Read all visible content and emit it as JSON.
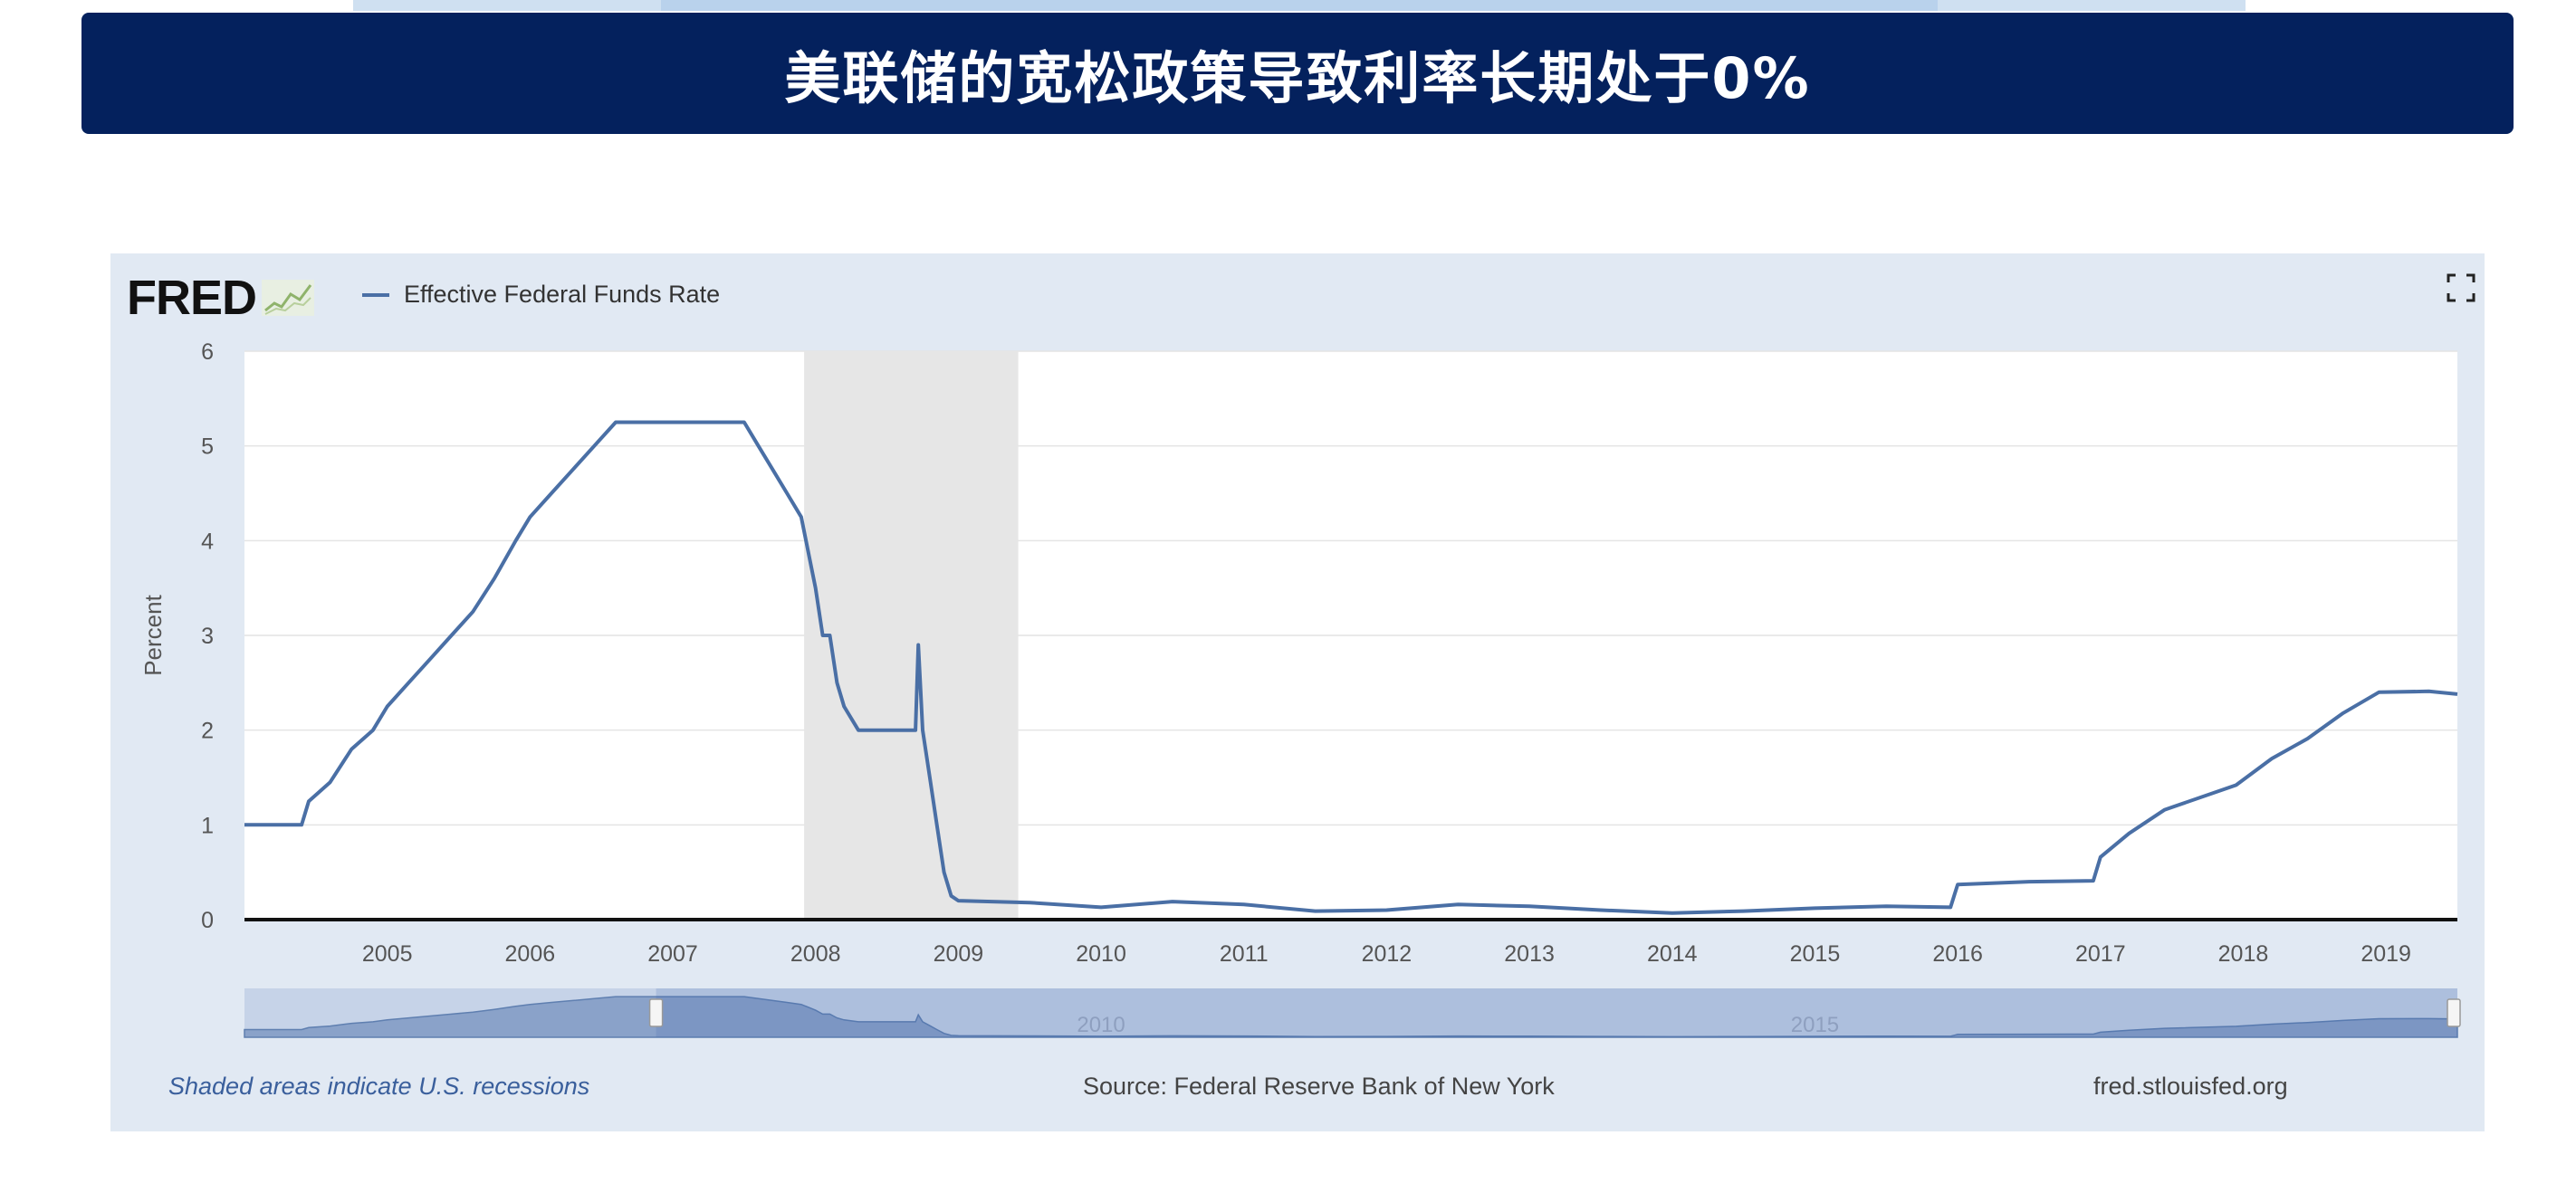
{
  "slide": {
    "title": "美联储的宽松政策导致利率长期处于0%"
  },
  "fred": {
    "logo_text": "FRED",
    "source": "Source: Federal Reserve Bank of New York",
    "site": "fred.stlouisfed.org",
    "recession_note": "Shaded areas indicate U.S. recessions",
    "navigator_labels": [
      "2010",
      "2015"
    ]
  },
  "chart_data": {
    "type": "line",
    "title": "",
    "xlabel": "",
    "ylabel": "Percent",
    "xlim": [
      2004.0,
      2019.5
    ],
    "ylim": [
      0,
      6
    ],
    "yticks": [
      0,
      1,
      2,
      3,
      4,
      5,
      6
    ],
    "xticks": [
      "2005",
      "2006",
      "2007",
      "2008",
      "2009",
      "2010",
      "2011",
      "2012",
      "2013",
      "2014",
      "2015",
      "2016",
      "2017",
      "2018",
      "2019"
    ],
    "grid": true,
    "legend": "top-left",
    "recessions": [
      [
        2007.92,
        2009.42
      ]
    ],
    "series": [
      {
        "name": "Effective Federal Funds Rate",
        "color": "#4a6fa5",
        "x": [
          2004.0,
          2004.4,
          2004.45,
          2004.6,
          2004.75,
          2004.9,
          2005.0,
          2005.15,
          2005.3,
          2005.45,
          2005.6,
          2005.75,
          2005.9,
          2006.0,
          2006.15,
          2006.3,
          2006.45,
          2006.6,
          2007.0,
          2007.5,
          2007.6,
          2007.7,
          2007.8,
          2007.9,
          2008.0,
          2008.05,
          2008.1,
          2008.15,
          2008.2,
          2008.3,
          2008.4,
          2008.5,
          2008.6,
          2008.7,
          2008.72,
          2008.75,
          2008.8,
          2008.85,
          2008.9,
          2008.95,
          2009.0,
          2009.5,
          2010.0,
          2010.5,
          2011.0,
          2011.5,
          2012.0,
          2012.5,
          2013.0,
          2013.5,
          2014.0,
          2014.5,
          2015.0,
          2015.5,
          2015.95,
          2016.0,
          2016.5,
          2016.95,
          2017.0,
          2017.2,
          2017.45,
          2017.95,
          2018.2,
          2018.45,
          2018.7,
          2018.95,
          2019.3,
          2019.5
        ],
        "y": [
          1.0,
          1.0,
          1.25,
          1.45,
          1.8,
          2.0,
          2.25,
          2.5,
          2.75,
          3.0,
          3.25,
          3.6,
          4.0,
          4.25,
          4.5,
          4.75,
          5.0,
          5.25,
          5.25,
          5.25,
          5.0,
          4.75,
          4.5,
          4.25,
          3.5,
          3.0,
          3.0,
          2.5,
          2.25,
          2.0,
          2.0,
          2.0,
          2.0,
          2.0,
          2.9,
          2.0,
          1.5,
          1.0,
          0.5,
          0.25,
          0.2,
          0.18,
          0.13,
          0.19,
          0.16,
          0.09,
          0.1,
          0.16,
          0.14,
          0.1,
          0.07,
          0.09,
          0.12,
          0.14,
          0.13,
          0.37,
          0.4,
          0.41,
          0.66,
          0.91,
          1.16,
          1.42,
          1.7,
          1.91,
          2.18,
          2.4,
          2.41,
          2.38
        ]
      }
    ]
  }
}
